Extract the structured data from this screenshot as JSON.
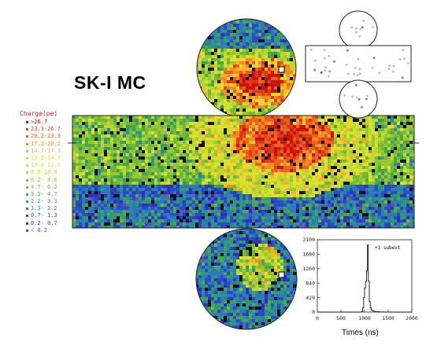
{
  "title": "SK-I  MC",
  "legend": {
    "title": "Charge(pe)",
    "items": [
      {
        "label": " >26.7",
        "color": "#cc1111"
      },
      {
        "label": "23.3-26.7",
        "color": "#e03a1a"
      },
      {
        "label": "20.2-23.3",
        "color": "#e8641c"
      },
      {
        "label": "17.3-20.2",
        "color": "#f08c22"
      },
      {
        "label": "14.7-17.3",
        "color": "#f4b428"
      },
      {
        "label": "12.2-14.7",
        "color": "#e8d830"
      },
      {
        "label": "10.0-12.2",
        "color": "#d8e030"
      },
      {
        "label": " 8.0-10.0",
        "color": "#bcd830"
      },
      {
        "label": " 6.2- 8.0",
        "color": "#98c830"
      },
      {
        "label": " 4.7- 6.2",
        "color": "#74b838"
      },
      {
        "label": " 3.3- 4.7",
        "color": "#4aa848"
      },
      {
        "label": " 2.2- 3.3",
        "color": "#2c9a7a"
      },
      {
        "label": " 1.3- 2.2",
        "color": "#2c7ab8"
      },
      {
        "label": " 0.7- 1.3",
        "color": "#2a4ac8"
      },
      {
        "label": " 0.2- 0.7",
        "color": "#3030b8"
      },
      {
        "label": " < 0.2",
        "color": "#7a3ad0"
      }
    ]
  },
  "timing_histogram": {
    "legend_text": "+1 subevt",
    "x_ticks": [
      "0",
      "500",
      "1000",
      "1500",
      "2000"
    ],
    "y_ticks": [
      "0",
      "420",
      "840",
      "1260",
      "1680",
      "2100"
    ],
    "xlabel": "Times (ns)",
    "bins": [
      {
        "x": 900,
        "y": 0
      },
      {
        "x": 940,
        "y": 20
      },
      {
        "x": 960,
        "y": 120
      },
      {
        "x": 980,
        "y": 420
      },
      {
        "x": 1000,
        "y": 700
      },
      {
        "x": 1020,
        "y": 880
      },
      {
        "x": 1040,
        "y": 1200
      },
      {
        "x": 1060,
        "y": 1950
      },
      {
        "x": 1080,
        "y": 900
      },
      {
        "x": 1100,
        "y": 300
      },
      {
        "x": 1120,
        "y": 120
      },
      {
        "x": 1140,
        "y": 60
      },
      {
        "x": 1170,
        "y": 30
      },
      {
        "x": 1220,
        "y": 12
      },
      {
        "x": 1300,
        "y": 5
      },
      {
        "x": 1400,
        "y": 0
      }
    ]
  }
}
